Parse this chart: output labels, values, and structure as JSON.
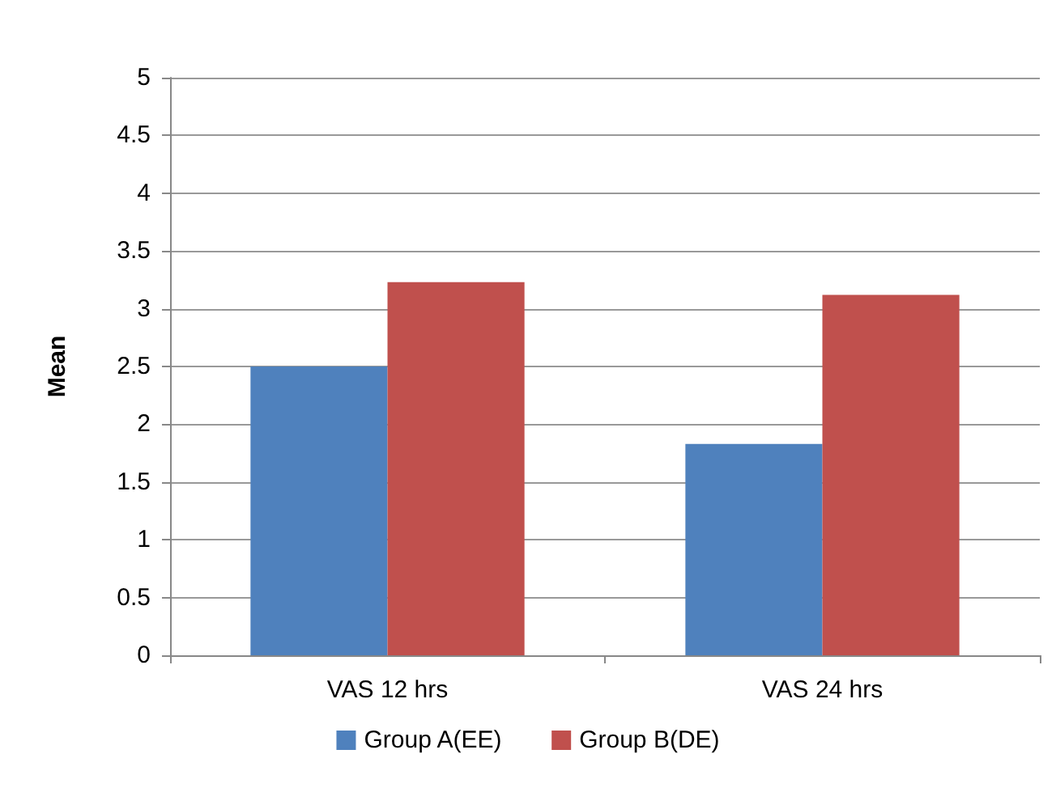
{
  "chart_data": {
    "type": "bar",
    "ylabel": "Mean",
    "categories": [
      "VAS 12 hrs",
      "VAS 24 hrs"
    ],
    "series": [
      {
        "name": "Group A(EE)",
        "color": "#4f81bd",
        "values": [
          2.5,
          1.83
        ]
      },
      {
        "name": "Group B(DE)",
        "color": "#c0504d",
        "values": [
          3.23,
          3.12
        ]
      }
    ],
    "ylim": [
      0,
      5
    ],
    "yticks": [
      0,
      0.5,
      1,
      1.5,
      2,
      2.5,
      3,
      3.5,
      4,
      4.5,
      5
    ],
    "grid": "y",
    "legend": "bottom"
  }
}
